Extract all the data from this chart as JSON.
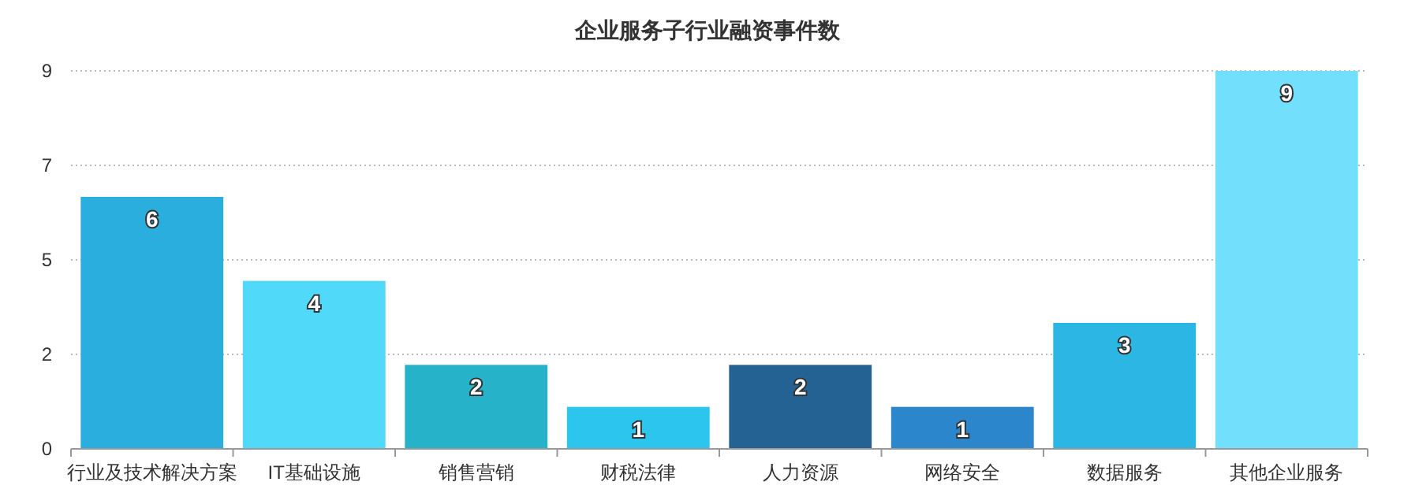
{
  "chart_data": {
    "type": "bar",
    "title": "企业服务子行业融资事件数",
    "categories": [
      "行业及技术解决方案",
      "IT基础设施",
      "销售营销",
      "财税法律",
      "人力资源",
      "网络安全",
      "数据服务",
      "其他企业服务"
    ],
    "values": [
      6,
      4,
      2,
      1,
      2,
      1,
      3,
      9
    ],
    "colors": [
      "#29aede",
      "#51d9fa",
      "#26b3c9",
      "#2bc5ed",
      "#246293",
      "#2c86cc",
      "#2bb6e3",
      "#72e0fc"
    ],
    "ylim": [
      0,
      9
    ],
    "yticks": [
      0,
      {
        "value": 2.25,
        "label": "2"
      },
      {
        "value": 4.5,
        "label": "5"
      },
      {
        "value": 6.75,
        "label": "7"
      },
      9
    ],
    "grid": "y",
    "data_labels": true
  }
}
